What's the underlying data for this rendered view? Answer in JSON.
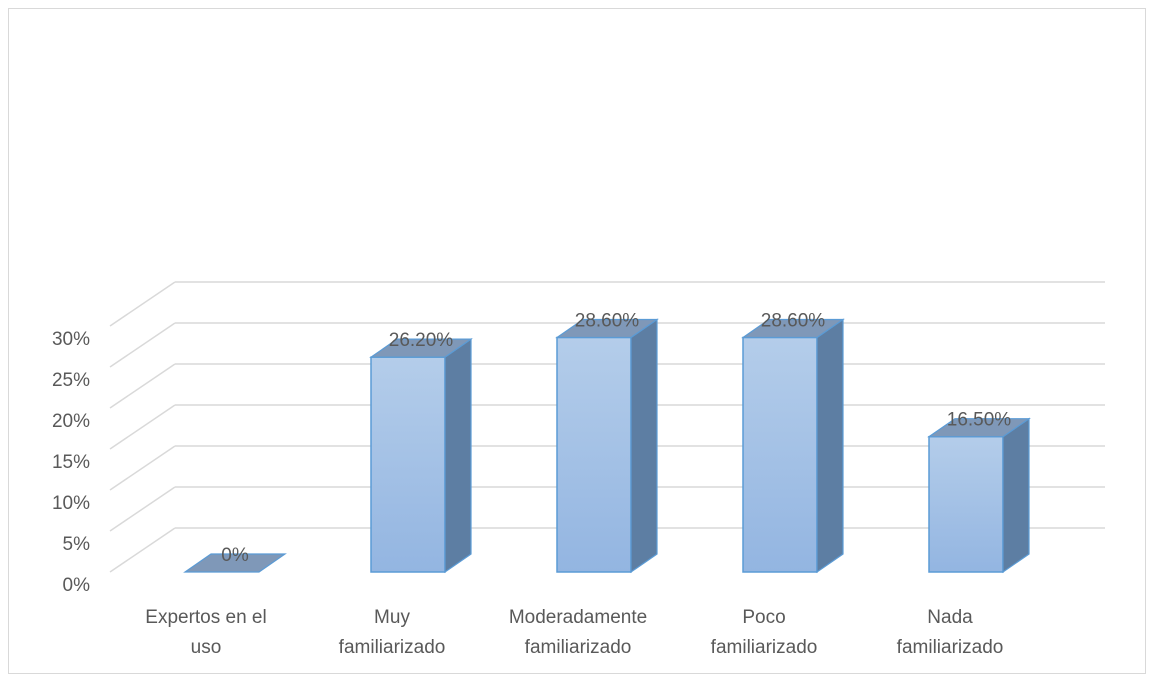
{
  "chart_data": {
    "type": "bar",
    "categories": [
      [
        "Expertos en el",
        "uso"
      ],
      [
        "Muy",
        "familiarizado"
      ],
      [
        "Moderadamente",
        "familiarizado"
      ],
      [
        "Poco",
        "familiarizado"
      ],
      [
        "Nada",
        "familiarizado"
      ]
    ],
    "values": [
      0,
      26.2,
      28.6,
      28.6,
      16.5
    ],
    "data_labels": [
      "0%",
      "26.20%",
      "28.60%",
      "28.60%",
      "16.50%"
    ],
    "yticks": [
      "0%",
      "5%",
      "10%",
      "15%",
      "20%",
      "25%",
      "30%"
    ],
    "ylim": [
      0,
      30
    ],
    "ystep": 5,
    "title": "",
    "xlabel": "",
    "ylabel": "",
    "grid": true,
    "legend": "none",
    "style": "3d-column",
    "colors": {
      "bar_top": "#b4cdea",
      "bar_bottom": "#93b5e1",
      "bar_outline": "#5b9bd5",
      "bar_side": "#5d7ea3",
      "bar_cap": "#7f98b8",
      "gridline": "#d9d9d9",
      "text": "#595959"
    }
  }
}
